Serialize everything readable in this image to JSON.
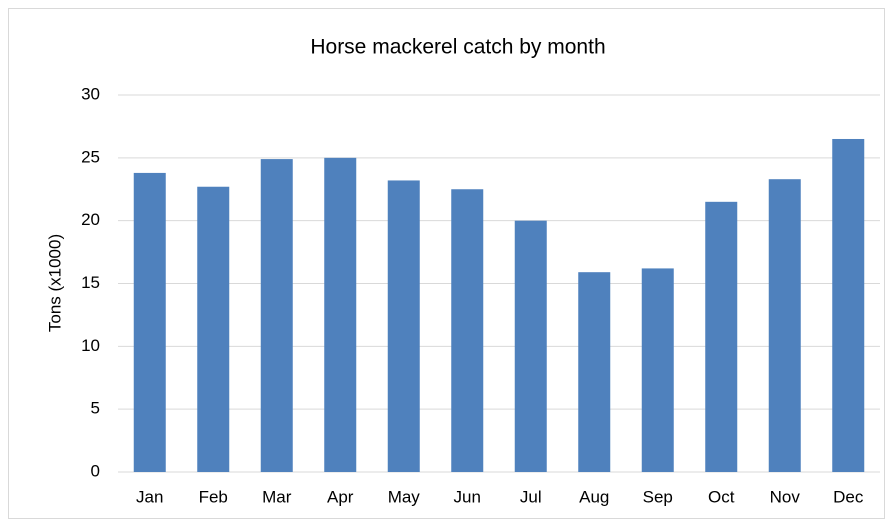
{
  "chart_data": {
    "type": "bar",
    "title": "Horse mackerel catch by month",
    "y_label": "Tons (x1000)",
    "categories": [
      "Jan",
      "Feb",
      "Mar",
      "Apr",
      "May",
      "Jun",
      "Jul",
      "Aug",
      "Sep",
      "Oct",
      "Nov",
      "Dec"
    ],
    "values": [
      23.8,
      22.7,
      24.9,
      25.0,
      23.2,
      22.5,
      20.0,
      15.9,
      16.2,
      21.5,
      23.3,
      26.5
    ],
    "color": "#4f81bd",
    "ylim": [
      0,
      30
    ],
    "yticks": [
      0,
      5,
      10,
      15,
      20,
      25,
      30
    ],
    "grid": true
  }
}
